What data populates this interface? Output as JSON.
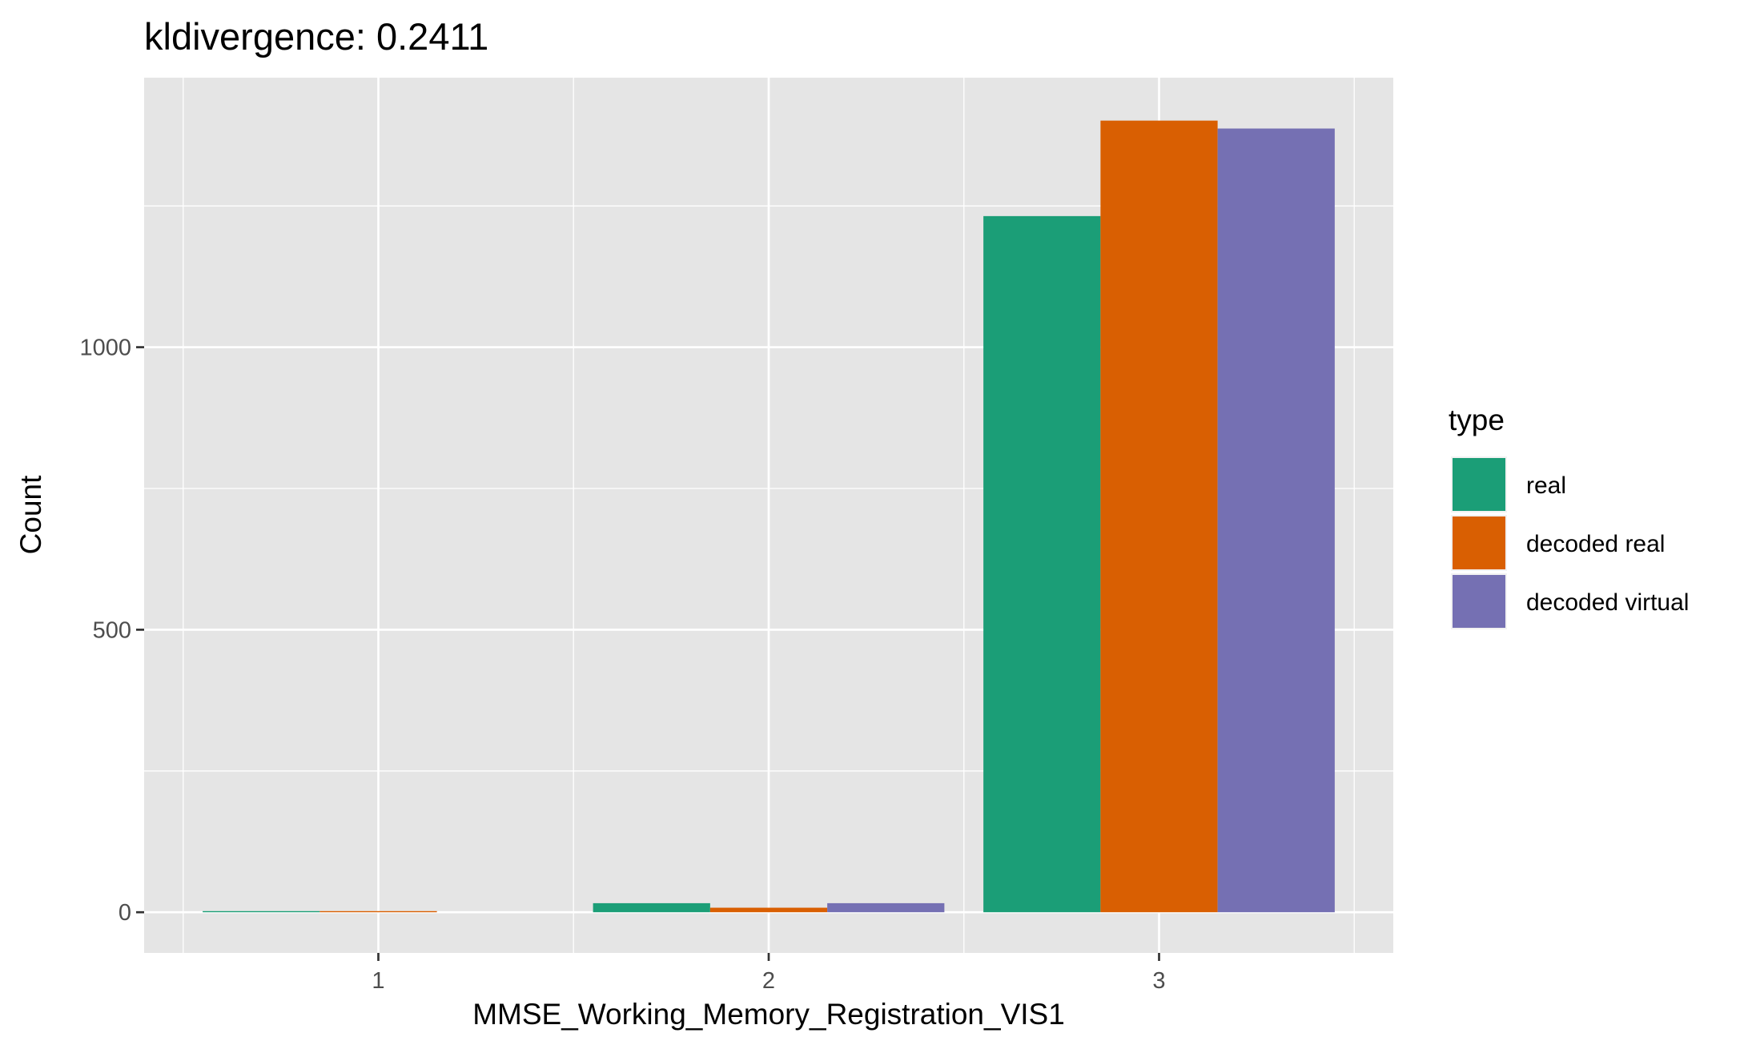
{
  "chart_data": {
    "type": "bar",
    "title": "kldivergence: 0.2411",
    "xlabel": "MMSE_Working_Memory_Registration_VIS1",
    "ylabel": "Count",
    "categories": [
      "1",
      "2",
      "3"
    ],
    "series": [
      {
        "name": "real",
        "color": "#1b9e77",
        "values": [
          2,
          16,
          1232
        ]
      },
      {
        "name": "decoded real",
        "color": "#d95f02",
        "values": [
          2,
          8,
          1401
        ]
      },
      {
        "name": "decoded virtual",
        "color": "#7570b3",
        "values": [
          0,
          16,
          1387
        ]
      }
    ],
    "y_ticks": [
      0,
      500,
      1000
    ],
    "ylim": [
      -72,
      1477
    ],
    "legend": {
      "title": "type",
      "position": "right"
    },
    "grid": true,
    "theme": {
      "panel_bg": "#e5e5e5",
      "grid_color": "#ffffff"
    }
  }
}
